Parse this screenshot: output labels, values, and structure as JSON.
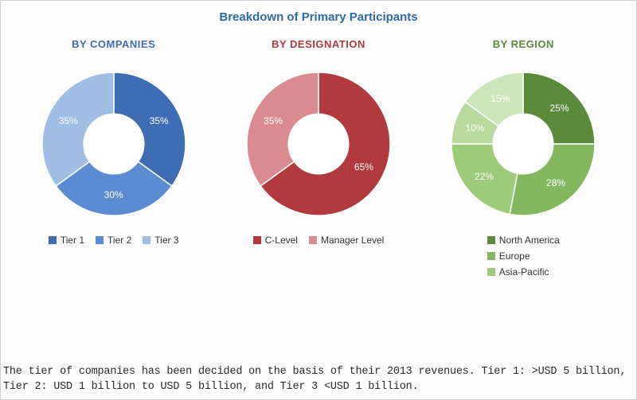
{
  "title": "Breakdown of Primary Participants",
  "background_color": "#ffffff",
  "border_color": "#d0d0d0",
  "title_color": "#2e6aa8",
  "footnote": "The tier of companies has been decided on the basis of their 2013 revenues. Tier 1: >USD 5 billion, Tier 2: USD 1 billion to USD 5 billion, and Tier 3 <USD 1 billion.",
  "legend_marker_shape": "square",
  "charts": [
    {
      "id": "companies",
      "title": "BY COMPANIES",
      "title_color": "#3e6db3",
      "type": "donut",
      "inner_radius_ratio": 0.42,
      "start_angle_deg": 0,
      "direction": "clockwise",
      "legend_layout": "row",
      "slices": [
        {
          "label": "Tier 1",
          "value": 35,
          "display": "35%",
          "color": "#3e6db3"
        },
        {
          "label": "Tier 2",
          "value": 30,
          "display": "30%",
          "color": "#5b8bd0"
        },
        {
          "label": "Tier 3",
          "value": 35,
          "display": "35%",
          "color": "#a0bde4"
        }
      ]
    },
    {
      "id": "designation",
      "title": "BY DESIGNATION",
      "title_color": "#b13a3f",
      "type": "donut",
      "inner_radius_ratio": 0.42,
      "start_angle_deg": 0,
      "direction": "clockwise",
      "legend_layout": "row",
      "slices": [
        {
          "label": "C-Level",
          "value": 65,
          "display": "65%",
          "color": "#b13a3f"
        },
        {
          "label": "Manager Level",
          "value": 35,
          "display": "35%",
          "color": "#d98b8f"
        }
      ]
    },
    {
      "id": "region",
      "title": "BY REGION",
      "title_color": "#5a8a3a",
      "type": "donut",
      "inner_radius_ratio": 0.42,
      "start_angle_deg": 0,
      "direction": "clockwise",
      "legend_layout": "column",
      "slices": [
        {
          "label": "North America",
          "value": 25,
          "display": "25%",
          "color": "#5a8a3a"
        },
        {
          "label": "Europe",
          "value": 28,
          "display": "28%",
          "color": "#84b860"
        },
        {
          "label": "Asia-Pacific",
          "value": 22,
          "display": "22%",
          "color": "#9ecb7a"
        },
        {
          "label": "_seg4",
          "value": 10,
          "display": "10%",
          "color": "#b8db9d",
          "hide_in_legend": true
        },
        {
          "label": "_seg5",
          "value": 15,
          "display": "15%",
          "color": "#cde6b9",
          "hide_in_legend": true
        }
      ]
    }
  ]
}
